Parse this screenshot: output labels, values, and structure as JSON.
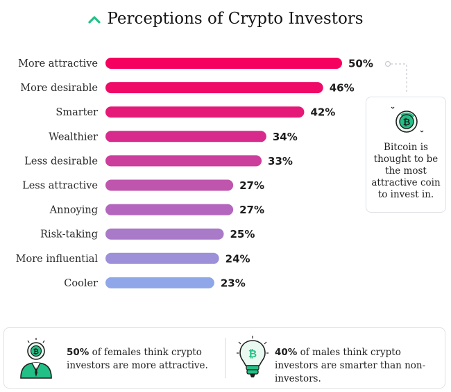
{
  "title": "Perceptions of Crypto Investors",
  "colors": {
    "accent_green": "#22c087",
    "bars": [
      "#f5005e",
      "#ef0a68",
      "#e51a78",
      "#d82a8c",
      "#cc3e9c",
      "#bf55ad",
      "#b466be",
      "#a97ac8",
      "#9d90d8",
      "#8fa6e8"
    ]
  },
  "chart_data": {
    "type": "bar",
    "orientation": "horizontal",
    "title": "Perceptions of Crypto Investors",
    "categories": [
      "More attractive",
      "More desirable",
      "Smarter",
      "Wealthier",
      "Less desirable",
      "Less attractive",
      "Annoying",
      "Risk-taking",
      "More influential",
      "Cooler"
    ],
    "values": [
      50,
      46,
      42,
      34,
      33,
      27,
      27,
      25,
      24,
      23
    ],
    "value_labels": [
      "50%",
      "46%",
      "42%",
      "34%",
      "33%",
      "27%",
      "27%",
      "25%",
      "24%",
      "23%"
    ],
    "unit": "%",
    "xlim": [
      0,
      50
    ],
    "grid": false,
    "legend": "none"
  },
  "side_card": {
    "icon": "bitcoin-coin-icon",
    "text": "Bitcoin is thought to be the most attractive coin to invest in."
  },
  "facts": [
    {
      "icon": "investor-person-icon",
      "bold": "50%",
      "text": " of females think crypto investors are more attractive."
    },
    {
      "icon": "lightbulb-bitcoin-icon",
      "bold": "40%",
      "text": " of males think crypto investors are smarter than non-investors."
    }
  ]
}
